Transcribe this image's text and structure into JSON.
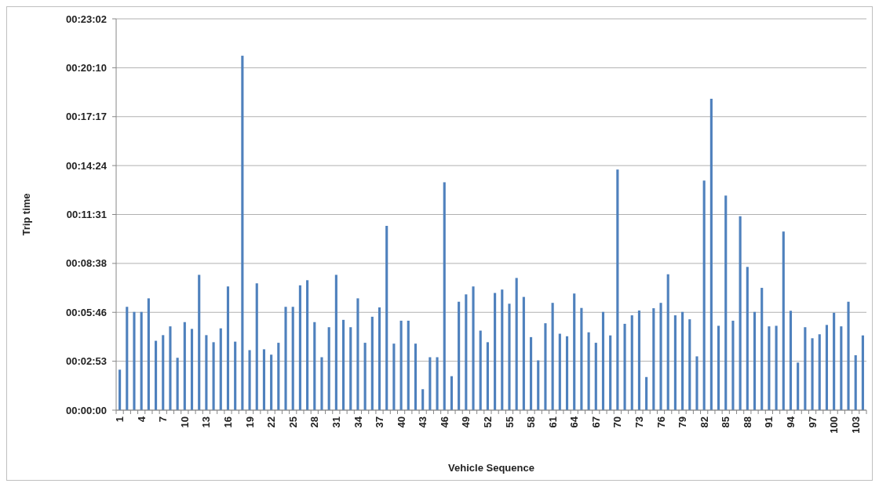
{
  "chart_data": {
    "type": "bar",
    "xlabel": "Vehicle Sequence",
    "ylabel": "Trip time",
    "color": "#4f81bd",
    "grid": "y",
    "categories": [
      "1",
      null,
      null,
      "4",
      null,
      null,
      "7",
      null,
      null,
      "10",
      null,
      null,
      "13",
      null,
      null,
      "16",
      null,
      null,
      "19",
      null,
      null,
      "22",
      null,
      null,
      "25",
      null,
      null,
      "28",
      null,
      null,
      "31",
      null,
      null,
      "34",
      null,
      null,
      "37",
      null,
      null,
      "40",
      null,
      null,
      "43",
      null,
      null,
      "46",
      null,
      null,
      "49",
      null,
      null,
      "52",
      null,
      null,
      "55",
      null,
      null,
      "58",
      null,
      null,
      "61",
      null,
      null,
      "64",
      null,
      null,
      "67",
      null,
      null,
      "70",
      null,
      null,
      "73",
      null,
      null,
      "76",
      null,
      null,
      "79",
      null,
      null,
      "82",
      null,
      null,
      "85",
      null,
      null,
      "88",
      null,
      null,
      "91",
      null,
      null,
      "94",
      null,
      null,
      "97",
      null,
      null,
      "100",
      null,
      null,
      "103",
      null
    ],
    "values": [
      143,
      365,
      347,
      347,
      395,
      245,
      265,
      296,
      185,
      311,
      287,
      478,
      265,
      240,
      289,
      437,
      242,
      1252,
      212,
      448,
      215,
      196,
      238,
      365,
      365,
      441,
      459,
      311,
      187,
      293,
      478,
      319,
      293,
      395,
      238,
      330,
      363,
      651,
      235,
      316,
      316,
      235,
      74,
      187,
      187,
      805,
      120,
      383,
      409,
      437,
      281,
      240,
      414,
      426,
      376,
      467,
      400,
      258,
      176,
      307,
      379,
      270,
      261,
      412,
      361,
      275,
      238,
      347,
      264,
      850,
      305,
      335,
      352,
      117,
      360,
      379,
      480,
      335,
      347,
      321,
      190,
      811,
      1100,
      298,
      758,
      316,
      685,
      506,
      347,
      432,
      296,
      298,
      631,
      351,
      168,
      293,
      254,
      268,
      301,
      344,
      296,
      383,
      194,
      264
    ],
    "ylim": [
      0,
      1382.4
    ],
    "yticks": [
      {
        "value": 0,
        "label": "00:00:00"
      },
      {
        "value": 172.8,
        "label": "00:02:53"
      },
      {
        "value": 345.6,
        "label": "00:05:46"
      },
      {
        "value": 518.4,
        "label": "00:08:38"
      },
      {
        "value": 691.2,
        "label": "00:11:31"
      },
      {
        "value": 864,
        "label": "00:14:24"
      },
      {
        "value": 1036.8,
        "label": "00:17:17"
      },
      {
        "value": 1209.6,
        "label": "00:20:10"
      },
      {
        "value": 1382.4,
        "label": "00:23:02"
      }
    ]
  }
}
